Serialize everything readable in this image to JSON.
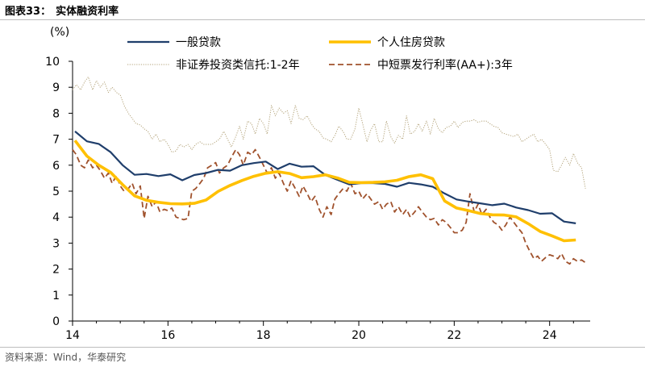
{
  "figure_label": "图表33：",
  "figure_title": "实体融资利率",
  "source_text": "资料来源：Wind，华泰研究",
  "chart_data": {
    "type": "line",
    "yunit": "(%)",
    "ylim": [
      0,
      10
    ],
    "yticks": [
      0,
      1,
      2,
      3,
      4,
      5,
      6,
      7,
      8,
      9,
      10
    ],
    "xlim": [
      2014,
      2024.85
    ],
    "xticks": [
      2014,
      2016,
      2018,
      2020,
      2022,
      2024
    ],
    "xtick_labels": [
      "14",
      "16",
      "18",
      "20",
      "22",
      "24"
    ],
    "grid": false,
    "legend_position": "top",
    "series": [
      {
        "name": "一般贷款",
        "color": "#1f3e6b",
        "style": "solid",
        "x": [
          2014.05,
          2014.3,
          2014.55,
          2014.8,
          2015.05,
          2015.3,
          2015.55,
          2015.8,
          2016.05,
          2016.3,
          2016.55,
          2016.8,
          2017.05,
          2017.3,
          2017.55,
          2017.8,
          2018.05,
          2018.3,
          2018.55,
          2018.8,
          2019.05,
          2019.3,
          2019.55,
          2019.8,
          2020.05,
          2020.3,
          2020.55,
          2020.8,
          2021.05,
          2021.3,
          2021.55,
          2021.8,
          2022.05,
          2022.3,
          2022.55,
          2022.8,
          2023.05,
          2023.3,
          2023.55,
          2023.8,
          2024.05,
          2024.3,
          2024.55
        ],
        "values": [
          7.3,
          6.92,
          6.82,
          6.5,
          6.0,
          5.63,
          5.66,
          5.58,
          5.65,
          5.42,
          5.62,
          5.7,
          5.82,
          5.79,
          6.0,
          6.08,
          6.14,
          5.85,
          6.06,
          5.94,
          5.96,
          5.62,
          5.44,
          5.26,
          5.31,
          5.31,
          5.28,
          5.17,
          5.32,
          5.26,
          5.17,
          4.91,
          4.68,
          4.6,
          4.53,
          4.46,
          4.52,
          4.37,
          4.27,
          4.13,
          4.15,
          3.83,
          3.76
        ]
      },
      {
        "name": "个人住房贷款",
        "color": "#ffc000",
        "style": "thick",
        "x": [
          2014.05,
          2014.3,
          2014.55,
          2014.8,
          2015.05,
          2015.3,
          2015.55,
          2015.8,
          2016.05,
          2016.3,
          2016.55,
          2016.8,
          2017.05,
          2017.3,
          2017.55,
          2017.8,
          2018.05,
          2018.3,
          2018.55,
          2018.8,
          2019.05,
          2019.3,
          2019.55,
          2019.8,
          2020.05,
          2020.3,
          2020.55,
          2020.8,
          2021.05,
          2021.3,
          2021.55,
          2021.8,
          2022.05,
          2022.3,
          2022.55,
          2022.8,
          2023.05,
          2023.3,
          2023.55,
          2023.8,
          2024.05,
          2024.3,
          2024.55
        ],
        "values": [
          6.95,
          6.35,
          6.0,
          5.72,
          5.25,
          4.82,
          4.65,
          4.57,
          4.52,
          4.51,
          4.53,
          4.66,
          4.99,
          5.22,
          5.41,
          5.57,
          5.69,
          5.75,
          5.68,
          5.52,
          5.56,
          5.63,
          5.51,
          5.34,
          5.33,
          5.34,
          5.36,
          5.42,
          5.56,
          5.63,
          5.48,
          4.62,
          4.35,
          4.25,
          4.14,
          4.09,
          4.08,
          4.01,
          3.75,
          3.45,
          3.28,
          3.09,
          3.12
        ]
      },
      {
        "name": "非证券投资类信托:1-2年",
        "color": "#b3a37a",
        "style": "dotted",
        "x": [
          2014.0,
          2014.08,
          2014.17,
          2014.25,
          2014.33,
          2014.42,
          2014.5,
          2014.58,
          2014.67,
          2014.75,
          2014.83,
          2014.92,
          2015.0,
          2015.08,
          2015.17,
          2015.25,
          2015.33,
          2015.42,
          2015.5,
          2015.58,
          2015.67,
          2015.75,
          2015.83,
          2015.92,
          2016.0,
          2016.08,
          2016.17,
          2016.25,
          2016.33,
          2016.42,
          2016.5,
          2016.58,
          2016.67,
          2016.75,
          2016.83,
          2016.92,
          2017.0,
          2017.08,
          2017.17,
          2017.25,
          2017.33,
          2017.42,
          2017.5,
          2017.58,
          2017.67,
          2017.75,
          2017.83,
          2017.92,
          2018.0,
          2018.08,
          2018.17,
          2018.25,
          2018.33,
          2018.42,
          2018.5,
          2018.58,
          2018.67,
          2018.75,
          2018.83,
          2018.92,
          2019.0,
          2019.08,
          2019.17,
          2019.25,
          2019.33,
          2019.42,
          2019.5,
          2019.58,
          2019.67,
          2019.75,
          2019.83,
          2019.92,
          2020.0,
          2020.08,
          2020.17,
          2020.25,
          2020.33,
          2020.42,
          2020.5,
          2020.58,
          2020.67,
          2020.75,
          2020.83,
          2020.92,
          2021.0,
          2021.08,
          2021.17,
          2021.25,
          2021.33,
          2021.42,
          2021.5,
          2021.58,
          2021.67,
          2021.75,
          2021.83,
          2021.92,
          2022.0,
          2022.08,
          2022.17,
          2022.25,
          2022.33,
          2022.42,
          2022.5,
          2022.58,
          2022.67,
          2022.75,
          2022.83,
          2022.92,
          2023.0,
          2023.08,
          2023.17,
          2023.25,
          2023.33,
          2023.42,
          2023.5,
          2023.58,
          2023.67,
          2023.75,
          2023.83,
          2023.92,
          2024.0,
          2024.08,
          2024.17,
          2024.25,
          2024.33,
          2024.42,
          2024.5,
          2024.58,
          2024.67,
          2024.75
        ],
        "values": [
          8.9,
          9.1,
          8.9,
          9.2,
          9.4,
          8.9,
          9.25,
          9.0,
          9.2,
          8.8,
          9.0,
          8.8,
          8.7,
          8.3,
          8.0,
          7.8,
          7.6,
          7.55,
          7.4,
          7.3,
          7.0,
          7.2,
          6.9,
          7.0,
          6.8,
          6.5,
          6.55,
          6.8,
          6.7,
          6.8,
          6.6,
          6.8,
          6.9,
          6.8,
          6.8,
          6.8,
          6.9,
          7.0,
          7.3,
          7.0,
          6.7,
          7.1,
          7.5,
          7.0,
          7.7,
          7.6,
          7.2,
          7.8,
          7.6,
          7.2,
          8.3,
          7.9,
          8.2,
          8.0,
          8.1,
          7.6,
          8.3,
          7.8,
          7.75,
          7.9,
          7.6,
          7.4,
          7.3,
          7.05,
          7.0,
          6.9,
          7.15,
          7.5,
          7.3,
          7.0,
          7.0,
          7.4,
          8.2,
          7.6,
          6.9,
          7.35,
          7.6,
          6.9,
          6.9,
          7.7,
          7.1,
          6.85,
          7.15,
          7.0,
          7.9,
          7.2,
          7.3,
          7.6,
          7.3,
          7.7,
          7.2,
          7.8,
          7.4,
          7.25,
          7.45,
          7.5,
          7.7,
          7.45,
          7.65,
          7.7,
          7.7,
          7.75,
          7.65,
          7.7,
          7.7,
          7.6,
          7.5,
          7.45,
          7.25,
          7.2,
          7.15,
          7.1,
          7.2,
          6.9,
          7.0,
          7.1,
          7.2,
          6.9,
          7.0,
          6.8,
          6.6,
          5.8,
          5.75,
          6.0,
          6.3,
          6.0,
          6.45,
          6.1,
          5.9,
          5.1
        ]
      },
      {
        "name": "中短票发行利率(AA+):3年",
        "color": "#a0522d",
        "style": "dashed",
        "x": [
          2014.0,
          2014.08,
          2014.17,
          2014.25,
          2014.33,
          2014.42,
          2014.5,
          2014.58,
          2014.67,
          2014.75,
          2014.83,
          2014.92,
          2015.0,
          2015.08,
          2015.17,
          2015.25,
          2015.33,
          2015.42,
          2015.5,
          2015.58,
          2015.67,
          2015.75,
          2015.83,
          2015.92,
          2016.0,
          2016.08,
          2016.17,
          2016.25,
          2016.33,
          2016.42,
          2016.5,
          2016.58,
          2016.67,
          2016.75,
          2016.83,
          2016.92,
          2017.0,
          2017.08,
          2017.17,
          2017.25,
          2017.33,
          2017.42,
          2017.5,
          2017.58,
          2017.67,
          2017.75,
          2017.83,
          2017.92,
          2018.0,
          2018.08,
          2018.17,
          2018.25,
          2018.33,
          2018.42,
          2018.5,
          2018.58,
          2018.67,
          2018.75,
          2018.83,
          2018.92,
          2019.0,
          2019.08,
          2019.17,
          2019.25,
          2019.33,
          2019.42,
          2019.5,
          2019.58,
          2019.67,
          2019.75,
          2019.83,
          2019.92,
          2020.0,
          2020.08,
          2020.17,
          2020.25,
          2020.33,
          2020.42,
          2020.5,
          2020.58,
          2020.67,
          2020.75,
          2020.83,
          2020.92,
          2021.0,
          2021.08,
          2021.17,
          2021.25,
          2021.33,
          2021.42,
          2021.5,
          2021.58,
          2021.67,
          2021.75,
          2021.83,
          2021.92,
          2022.0,
          2022.08,
          2022.17,
          2022.25,
          2022.33,
          2022.42,
          2022.5,
          2022.58,
          2022.67,
          2022.75,
          2022.83,
          2022.92,
          2023.0,
          2023.08,
          2023.17,
          2023.25,
          2023.33,
          2023.42,
          2023.5,
          2023.58,
          2023.67,
          2023.75,
          2023.83,
          2023.92,
          2024.0,
          2024.08,
          2024.17,
          2024.25,
          2024.33,
          2024.42,
          2024.5,
          2024.58,
          2024.67,
          2024.75
        ],
        "values": [
          6.6,
          6.4,
          6.0,
          5.9,
          6.2,
          5.9,
          6.0,
          5.8,
          5.5,
          5.7,
          5.3,
          5.6,
          5.2,
          5.0,
          5.1,
          5.3,
          4.9,
          5.2,
          3.95,
          4.8,
          4.4,
          4.6,
          4.2,
          4.3,
          4.25,
          4.35,
          4.0,
          3.95,
          3.9,
          3.95,
          5.0,
          5.1,
          5.3,
          5.5,
          5.9,
          6.0,
          6.1,
          5.7,
          5.9,
          6.0,
          6.3,
          6.6,
          6.4,
          6.0,
          6.5,
          6.4,
          6.6,
          6.3,
          6.0,
          5.7,
          5.9,
          5.5,
          5.7,
          5.3,
          5.0,
          5.4,
          5.1,
          4.8,
          5.2,
          4.9,
          4.6,
          4.8,
          4.3,
          4.0,
          4.4,
          4.1,
          4.7,
          4.9,
          5.1,
          5.0,
          5.3,
          4.9,
          5.0,
          4.7,
          4.9,
          4.7,
          4.5,
          4.6,
          4.3,
          4.5,
          4.6,
          4.2,
          4.4,
          4.1,
          4.3,
          4.0,
          4.2,
          4.4,
          4.2,
          4.0,
          3.9,
          3.95,
          3.7,
          3.9,
          3.8,
          3.6,
          3.4,
          3.4,
          3.5,
          3.8,
          4.9,
          4.2,
          4.5,
          4.1,
          4.3,
          4.0,
          3.8,
          3.7,
          3.5,
          3.7,
          4.0,
          3.8,
          3.6,
          3.4,
          3.0,
          2.7,
          2.4,
          2.5,
          2.3,
          2.45,
          2.55,
          2.5,
          2.4,
          2.6,
          2.3,
          2.2,
          2.4,
          2.3,
          2.35,
          2.25
        ]
      }
    ]
  }
}
